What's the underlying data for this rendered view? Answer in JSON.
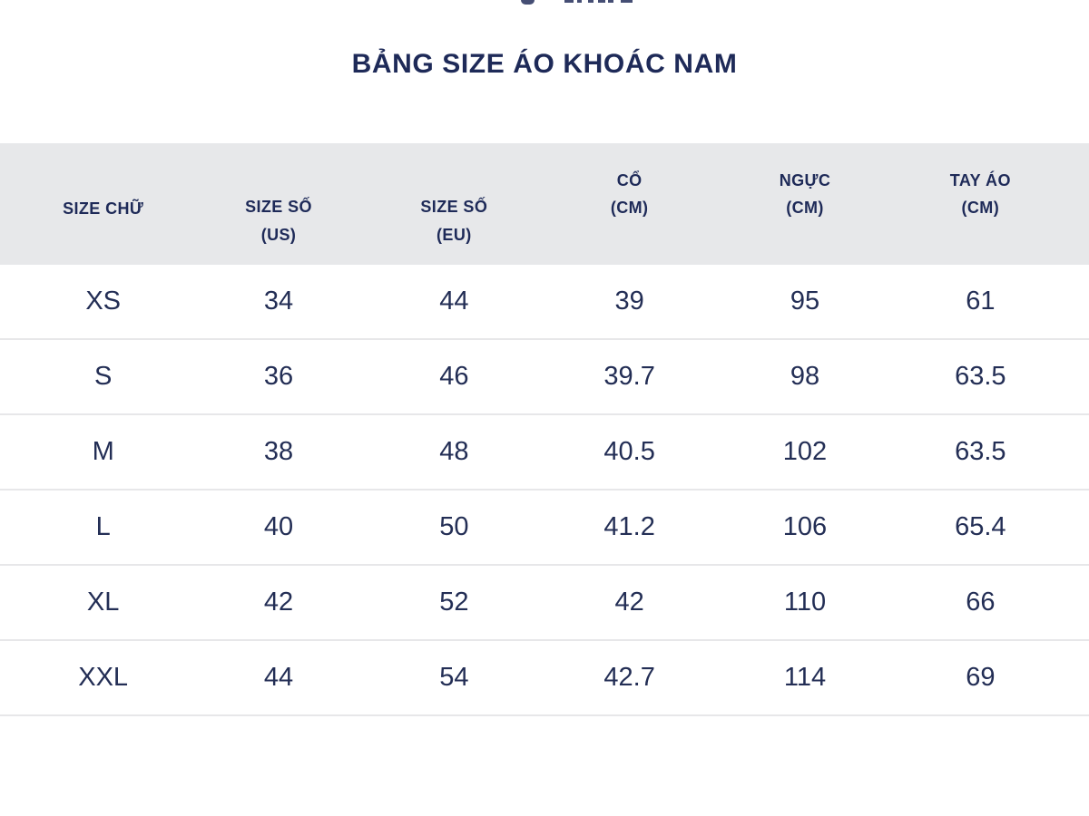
{
  "page": {
    "title": "BẢNG SIZE ÁO KHOÁC NAM"
  },
  "colors": {
    "text_navy": "#1e2a58",
    "data_text": "#232e55",
    "header_bg": "#e7e8ea",
    "row_border": "#e7e7e9",
    "background": "#ffffff"
  },
  "table": {
    "columns": [
      {
        "label": "SIZE CHỮ",
        "sub": ""
      },
      {
        "label": "SIZE SỐ",
        "sub": "(US)"
      },
      {
        "label": "SIZE SỐ",
        "sub": "(EU)"
      },
      {
        "label": "CỔ",
        "sub": "(CM)"
      },
      {
        "label": "NGỰC",
        "sub": "(CM)"
      },
      {
        "label": "TAY ÁO",
        "sub": "(CM)"
      }
    ],
    "rows": [
      [
        "XS",
        "34",
        "44",
        "39",
        "95",
        "61"
      ],
      [
        "S",
        "36",
        "46",
        "39.7",
        "98",
        "63.5"
      ],
      [
        "M",
        "38",
        "48",
        "40.5",
        "102",
        "63.5"
      ],
      [
        "L",
        "40",
        "50",
        "41.2",
        "106",
        "65.4"
      ],
      [
        "XL",
        "42",
        "52",
        "42",
        "110",
        "66"
      ],
      [
        "XXL",
        "44",
        "54",
        "42.7",
        "114",
        "69"
      ]
    ]
  },
  "chart_data": {
    "type": "table",
    "title": "BẢNG SIZE ÁO KHOÁC NAM",
    "columns": [
      "SIZE CHỮ",
      "SIZE SỐ (US)",
      "SIZE SỐ (EU)",
      "CỔ (CM)",
      "NGỰC (CM)",
      "TAY ÁO (CM)"
    ],
    "categories": [
      "XS",
      "S",
      "M",
      "L",
      "XL",
      "XXL"
    ],
    "series": [
      {
        "name": "SIZE SỐ (US)",
        "values": [
          34,
          36,
          38,
          40,
          42,
          44
        ]
      },
      {
        "name": "SIZE SỐ (EU)",
        "values": [
          44,
          46,
          48,
          50,
          52,
          54
        ]
      },
      {
        "name": "CỔ (CM)",
        "values": [
          39,
          39.7,
          40.5,
          41.2,
          42,
          42.7
        ]
      },
      {
        "name": "NGỰC (CM)",
        "values": [
          95,
          98,
          102,
          106,
          110,
          114
        ]
      },
      {
        "name": "TAY ÁO (CM)",
        "values": [
          61,
          63.5,
          63.5,
          65.4,
          66,
          69
        ]
      }
    ]
  }
}
